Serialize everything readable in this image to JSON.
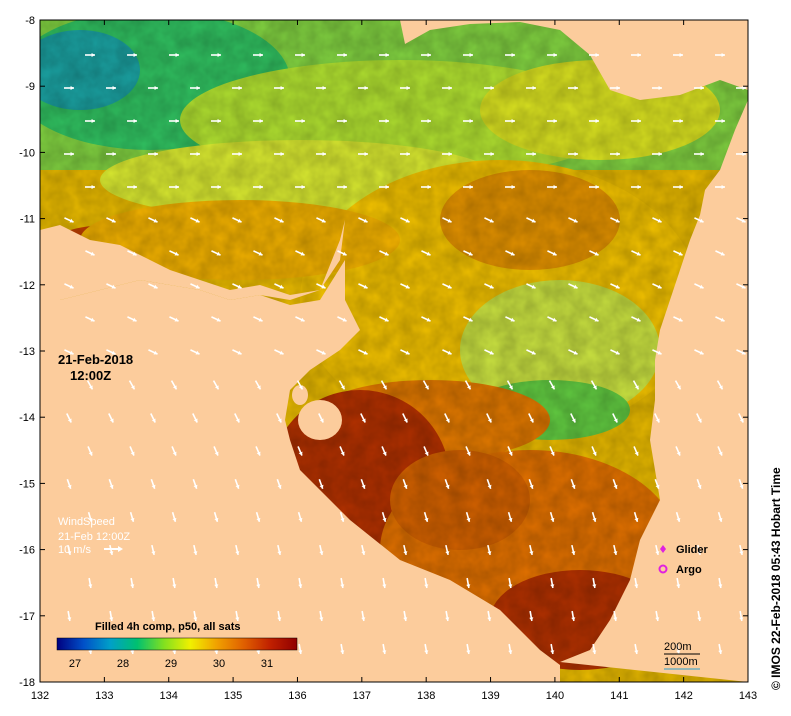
{
  "map": {
    "lon_ticks": [
      "132",
      "133",
      "134",
      "135",
      "136",
      "137",
      "138",
      "139",
      "140",
      "141",
      "142",
      "143"
    ],
    "lat_ticks": [
      "-8",
      "-9",
      "-10",
      "-11",
      "-12",
      "-13",
      "-14",
      "-15",
      "-16",
      "-17",
      "-18"
    ],
    "lon_range": [
      132,
      143
    ],
    "lat_range": [
      -8,
      -18
    ],
    "land_color": "#fccc9c",
    "ocean_palette": [
      "#d0f020",
      "#f0c800",
      "#f09000",
      "#c05000",
      "#a02000",
      "#40c040"
    ]
  },
  "date_label": {
    "line1": "21-Feb-2018",
    "line2": "12:00Z"
  },
  "wind_legend": {
    "title": "WindSpeed",
    "time": "21-Feb 12:00Z",
    "speed": "10 m/s"
  },
  "colorbar": {
    "title": "Filled 4h comp, p50, all sats",
    "ticks": [
      "27",
      "28",
      "29",
      "30",
      "31"
    ],
    "stops": [
      "#000080",
      "#0050c8",
      "#00a0c8",
      "#00c070",
      "#80e020",
      "#f0f000",
      "#f0a000",
      "#e06000",
      "#c02000",
      "#900000"
    ]
  },
  "markers": {
    "glider": "Glider",
    "argo": "Argo",
    "glider_color": "#e020e0",
    "argo_color": "#e020e0"
  },
  "depth_legend": {
    "d200": "200m",
    "d1000": "1000m"
  },
  "credit": "© IMOS 22-Feb-2018 05:43 Hobart Time"
}
